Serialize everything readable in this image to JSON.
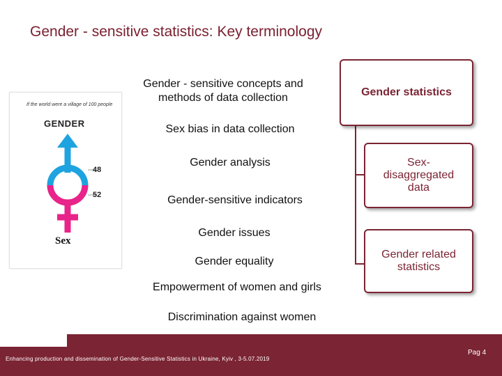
{
  "title": {
    "main": "Gender - sensitive statistics:",
    "sub": "Key terminology"
  },
  "terms": [
    "Gender - sensitive concepts and",
    "methods of data collection",
    "Sex bias in data collection",
    "Gender analysis",
    "Gender-sensitive indicators",
    "Gender issues",
    "Gender equality",
    "Empowerment of women and girls",
    "Discrimination against women"
  ],
  "boxes": [
    {
      "line1": "Gender statistics"
    },
    {
      "line1": "Sex-",
      "line2": "disaggregated",
      "line3": "data"
    },
    {
      "line1": "Gender related",
      "line2": "statistics"
    }
  ],
  "poster": {
    "caption": "If the world were a village of 100 people",
    "heading": "GENDER",
    "male_value": "48",
    "female_value": "52",
    "sex_label": "Sex"
  },
  "footer": {
    "text": "Enhancing production and dissemination of  Gender-Sensitive Statistics in Ukraine,  Kyiv , 3-5.07.2019",
    "page": "Pag 4"
  },
  "colors": {
    "accent": "#7b2433",
    "male_symbol": "#1ea3e0",
    "female_symbol": "#e8238a"
  }
}
